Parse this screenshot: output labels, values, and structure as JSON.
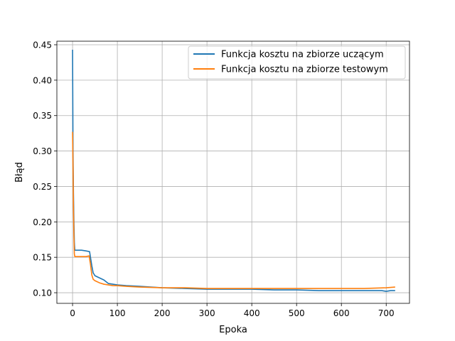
{
  "chart_data": {
    "type": "line",
    "title": "",
    "xlabel": "Epoka",
    "ylabel": "Błąd",
    "xlim": [
      -35,
      752
    ],
    "ylim": [
      0.085,
      0.455
    ],
    "xticks": [
      0,
      100,
      200,
      300,
      400,
      500,
      600,
      700
    ],
    "yticks": [
      0.1,
      0.15,
      0.2,
      0.25,
      0.3,
      0.35,
      0.4,
      0.45
    ],
    "grid": true,
    "legend_position": "top-right",
    "series": [
      {
        "name": "Funkcja kosztu na zbiorze uczącym",
        "color": "#1f77b4",
        "points": [
          [
            0,
            0.443
          ],
          [
            1,
            0.3
          ],
          [
            2,
            0.24
          ],
          [
            3,
            0.2
          ],
          [
            4,
            0.17
          ],
          [
            5,
            0.16
          ],
          [
            10,
            0.16
          ],
          [
            20,
            0.16
          ],
          [
            30,
            0.159
          ],
          [
            38,
            0.158
          ],
          [
            40,
            0.15
          ],
          [
            43,
            0.138
          ],
          [
            46,
            0.128
          ],
          [
            50,
            0.124
          ],
          [
            60,
            0.121
          ],
          [
            70,
            0.118
          ],
          [
            80,
            0.113
          ],
          [
            90,
            0.112
          ],
          [
            100,
            0.111
          ],
          [
            120,
            0.11
          ],
          [
            150,
            0.109
          ],
          [
            200,
            0.107
          ],
          [
            250,
            0.106
          ],
          [
            300,
            0.105
          ],
          [
            350,
            0.105
          ],
          [
            400,
            0.105
          ],
          [
            450,
            0.104
          ],
          [
            500,
            0.104
          ],
          [
            550,
            0.103
          ],
          [
            600,
            0.103
          ],
          [
            650,
            0.103
          ],
          [
            690,
            0.103
          ],
          [
            700,
            0.102
          ],
          [
            710,
            0.103
          ],
          [
            720,
            0.103
          ]
        ]
      },
      {
        "name": "Funkcja kosztu na zbiorze testowym",
        "color": "#ff7f0e",
        "points": [
          [
            0,
            0.327
          ],
          [
            1,
            0.28
          ],
          [
            2,
            0.22
          ],
          [
            3,
            0.18
          ],
          [
            4,
            0.155
          ],
          [
            5,
            0.151
          ],
          [
            10,
            0.151
          ],
          [
            20,
            0.151
          ],
          [
            30,
            0.151
          ],
          [
            37,
            0.152
          ],
          [
            40,
            0.14
          ],
          [
            43,
            0.125
          ],
          [
            46,
            0.119
          ],
          [
            50,
            0.117
          ],
          [
            60,
            0.114
          ],
          [
            70,
            0.112
          ],
          [
            80,
            0.111
          ],
          [
            90,
            0.11
          ],
          [
            100,
            0.11
          ],
          [
            120,
            0.109
          ],
          [
            150,
            0.108
          ],
          [
            200,
            0.107
          ],
          [
            250,
            0.107
          ],
          [
            300,
            0.106
          ],
          [
            350,
            0.106
          ],
          [
            400,
            0.106
          ],
          [
            450,
            0.106
          ],
          [
            500,
            0.106
          ],
          [
            550,
            0.106
          ],
          [
            600,
            0.106
          ],
          [
            650,
            0.106
          ],
          [
            700,
            0.107
          ],
          [
            720,
            0.108
          ]
        ]
      }
    ]
  }
}
